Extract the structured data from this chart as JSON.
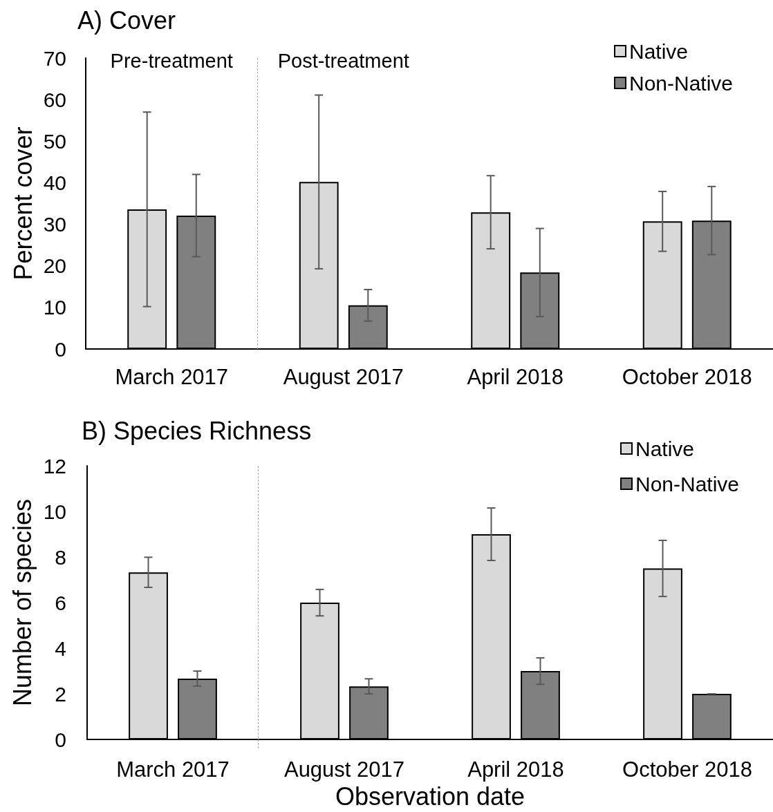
{
  "chart_data": [
    {
      "type": "bar",
      "title": "A) Cover",
      "ylabel": "Percent cover",
      "categories": [
        "March 2017",
        "August 2017",
        "April 2018",
        "October 2018"
      ],
      "series": [
        {
          "name": "Native",
          "color": "#d9d9d9",
          "values": [
            33.6,
            40.2,
            32.9,
            30.7
          ],
          "errors": [
            23.4,
            20.9,
            8.8,
            7.2
          ]
        },
        {
          "name": "Non-Native",
          "color": "#808080",
          "values": [
            32.1,
            10.5,
            18.4,
            30.9
          ],
          "errors": [
            9.9,
            3.8,
            10.6,
            8.2
          ]
        }
      ],
      "ylim": [
        0,
        70
      ],
      "yticks": [
        0,
        10,
        20,
        30,
        40,
        50,
        60,
        70
      ],
      "legend": "top right",
      "annotations": [
        "Pre-treatment",
        "Post-treatment"
      ]
    },
    {
      "type": "bar",
      "title": "B) Species Richness",
      "xlabel": "Observation date",
      "ylabel": "Number of species",
      "categories": [
        "March 2017",
        "August 2017",
        "April 2018",
        "October 2018"
      ],
      "series": [
        {
          "name": "Native",
          "color": "#d9d9d9",
          "values": [
            7.33,
            6.0,
            9.0,
            7.5
          ],
          "errors": [
            0.66,
            0.58,
            1.15,
            1.23
          ]
        },
        {
          "name": "Non-Native",
          "color": "#808080",
          "values": [
            2.67,
            2.33,
            3.0,
            2.0
          ],
          "errors": [
            0.33,
            0.33,
            0.58,
            0
          ]
        }
      ],
      "ylim": [
        0,
        12
      ],
      "yticks": [
        0,
        2,
        4,
        6,
        8,
        10,
        12
      ],
      "legend": "top right"
    }
  ]
}
